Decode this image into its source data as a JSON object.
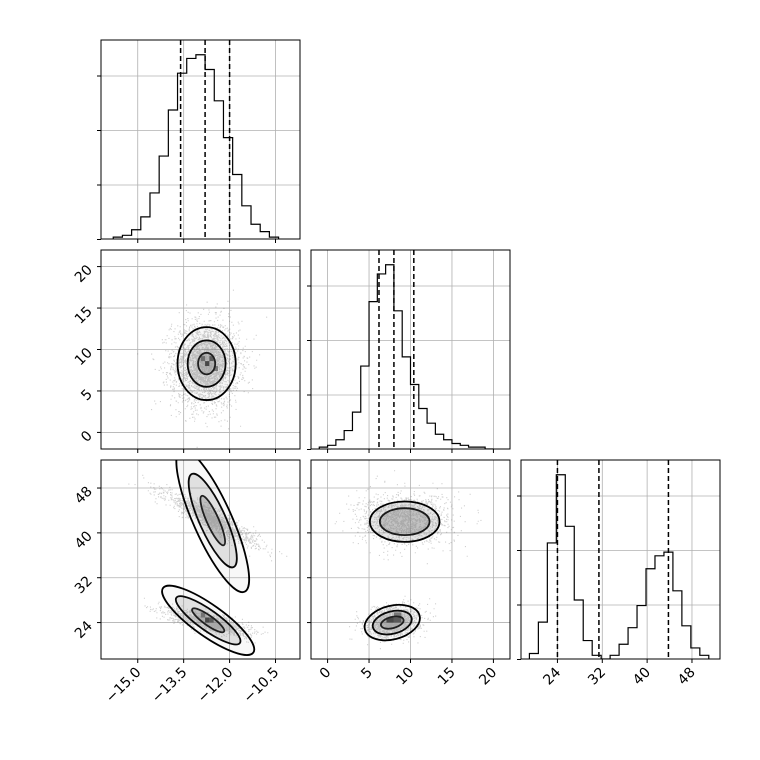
{
  "chart_data": {
    "type": "corner",
    "grid": true,
    "colors": {
      "points": "#555555",
      "lines": "#000000",
      "grid": "#b0b0b0",
      "frame": "#000000"
    },
    "parameters": [
      {
        "ticks": [
          -15.0,
          -13.5,
          -12.0,
          -10.5
        ],
        "tick_labels": [
          "−15.0",
          "−13.5",
          "−12.0",
          "−10.5"
        ],
        "range": [
          -16.2,
          -9.7
        ]
      },
      {
        "ticks": [
          0,
          5,
          10,
          15,
          20
        ],
        "tick_labels": [
          "0",
          "5",
          "10",
          "15",
          "20"
        ],
        "range": [
          -2.0,
          22.0
        ]
      },
      {
        "ticks": [
          24,
          32,
          40,
          48
        ],
        "tick_labels": [
          "24",
          "32",
          "40",
          "48"
        ],
        "range": [
          17.5,
          53.0
        ]
      }
    ],
    "quantiles": [
      [
        -13.6,
        -12.8,
        -12.0
      ],
      [
        6.2,
        8.0,
        10.4
      ],
      [
        24.0,
        31.4,
        43.8
      ]
    ],
    "histograms": [
      {
        "edges": [
          -15.8,
          -15.5,
          -15.2,
          -14.9,
          -14.6,
          -14.3,
          -14.0,
          -13.7,
          -13.4,
          -13.1,
          -12.8,
          -12.5,
          -12.2,
          -11.9,
          -11.6,
          -11.3,
          -11.0,
          -10.7,
          -10.4
        ],
        "counts": [
          1,
          2,
          5,
          12,
          25,
          45,
          70,
          90,
          98,
          100,
          92,
          75,
          55,
          35,
          18,
          8,
          4,
          1
        ]
      },
      {
        "edges": [
          -1.0,
          0.0,
          1.0,
          2.0,
          3.0,
          4.0,
          5.0,
          6.0,
          7.0,
          8.0,
          9.0,
          10.0,
          11.0,
          12.0,
          13.0,
          14.0,
          15.0,
          16.0,
          17.0,
          18.0,
          19.0,
          20.0
        ],
        "counts": [
          1,
          2,
          5,
          10,
          20,
          45,
          80,
          95,
          100,
          75,
          50,
          35,
          22,
          14,
          8,
          5,
          3,
          2,
          1,
          1,
          0
        ]
      },
      {
        "edges": [
          19.0,
          20.6,
          22.2,
          23.8,
          25.4,
          27.0,
          28.6,
          30.2,
          31.8,
          33.4,
          35.0,
          36.6,
          38.2,
          39.8,
          41.4,
          43.0,
          44.6,
          46.2,
          47.8,
          49.4,
          51.0
        ],
        "counts": [
          3,
          20,
          63,
          100,
          72,
          32,
          10,
          2,
          0,
          2,
          8,
          17,
          29,
          49,
          56,
          58,
          37,
          18,
          6,
          2
        ]
      }
    ],
    "scatter_clouds": {
      "1-0": [
        {
          "n": 2600,
          "mx": -12.8,
          "my": 8.3,
          "sx": 0.55,
          "sy": 2.6,
          "r": 0.0
        }
      ],
      "2-0": [
        {
          "n": 1400,
          "mx": -12.6,
          "my": 42.5,
          "sx": 0.75,
          "sy": 2.3,
          "r": -0.92
        },
        {
          "n": 1400,
          "mx": -12.7,
          "my": 24.2,
          "sx": 0.65,
          "sy": 1.1,
          "r": -0.75
        }
      ],
      "2-1": [
        {
          "n": 1400,
          "mx": 9.2,
          "my": 42.5,
          "sx": 2.8,
          "sy": 2.3,
          "r": 0.0
        },
        {
          "n": 1400,
          "mx": 7.8,
          "my": 24.2,
          "sx": 1.6,
          "sy": 1.4,
          "r": 0.2
        }
      ]
    },
    "contours": {
      "1-0": [
        {
          "cx": -12.75,
          "cy": 8.3,
          "levels": [
            {
              "rx": 0.28,
              "ry": 1.3
            },
            {
              "rx": 0.62,
              "ry": 2.8
            },
            {
              "rx": 0.95,
              "ry": 4.4
            }
          ],
          "angle": 0
        }
      ],
      "2-0": [
        {
          "cx": -12.55,
          "cy": 42.2,
          "angle": -1.15,
          "levels": [
            {
              "a": 0.9,
              "b": 0.1
            },
            {
              "a": 1.7,
              "b": 0.22
            },
            {
              "a": 2.6,
              "b": 0.32
            }
          ]
        },
        {
          "cx": -12.7,
          "cy": 24.4,
          "angle": -0.62,
          "levels": [
            {
              "a": 0.65,
              "b": 0.08
            },
            {
              "a": 1.3,
              "b": 0.17
            },
            {
              "a": 1.85,
              "b": 0.26
            }
          ]
        }
      ],
      "2-1": [
        {
          "cx": 9.3,
          "cy": 42.0,
          "levels": [
            {
              "rx": 3.0,
              "ry": 2.4
            },
            {
              "rx": 4.2,
              "ry": 3.6
            }
          ],
          "angle": 0
        },
        {
          "cx": 7.8,
          "cy": 24.0,
          "levels": [
            {
              "rx": 1.4,
              "ry": 1.0
            },
            {
              "rx": 2.4,
              "ry": 2.0
            },
            {
              "rx": 3.4,
              "ry": 3.0
            }
          ],
          "angle": 0.25
        }
      ]
    },
    "density_blocks": {
      "1-0": [
        {
          "x": -12.8,
          "y": 8.0,
          "dx": 0.14,
          "dy": 0.6,
          "level": 0.95
        },
        {
          "x": -12.66,
          "y": 8.6,
          "dx": 0.14,
          "dy": 0.6,
          "level": 0.8
        },
        {
          "x": -12.94,
          "y": 8.6,
          "dx": 0.14,
          "dy": 0.6,
          "level": 0.65
        },
        {
          "x": -12.52,
          "y": 7.4,
          "dx": 0.14,
          "dy": 0.6,
          "level": 0.55
        }
      ],
      "2-0": [
        {
          "x": -12.8,
          "y": 24.0,
          "dx": 0.14,
          "dy": 0.9,
          "level": 0.95
        },
        {
          "x": -12.66,
          "y": 24.0,
          "dx": 0.14,
          "dy": 0.9,
          "level": 0.8
        },
        {
          "x": -12.94,
          "y": 24.9,
          "dx": 0.14,
          "dy": 0.9,
          "level": 0.6
        }
      ],
      "2-1": [
        {
          "x": 7.1,
          "y": 24.0,
          "dx": 0.9,
          "dy": 0.9,
          "level": 0.95
        },
        {
          "x": 8.0,
          "y": 24.0,
          "dx": 0.9,
          "dy": 0.9,
          "level": 0.8
        },
        {
          "x": 8.0,
          "y": 24.9,
          "dx": 0.9,
          "dy": 0.9,
          "level": 0.55
        }
      ]
    }
  }
}
